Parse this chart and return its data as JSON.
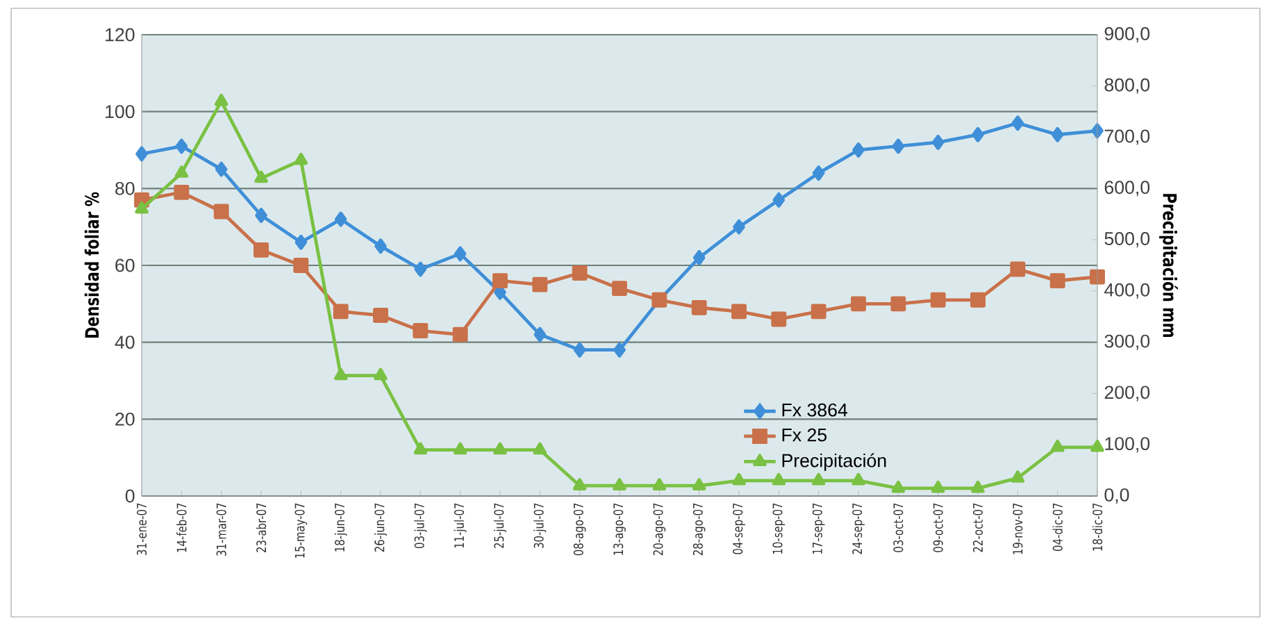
{
  "chart_data": {
    "type": "line",
    "ylabel": "Densidad foliar %",
    "y2label": "Precipitación mm",
    "categories": [
      "31-ene-07",
      "14-feb-07",
      "31-mar-07",
      "23-abr-07",
      "15-may-07",
      "18-jun-07",
      "26-jun-07",
      "03-jul-07",
      "11-jul-07",
      "25-jul-07",
      "30-jul-07",
      "08-ago-07",
      "13-ago-07",
      "20-ago-07",
      "28-ago-07",
      "04-sep-07",
      "10-sep-07",
      "17-sep-07",
      "24-sep-07",
      "03-oct-07",
      "09-oct-07",
      "22-oct-07",
      "19-nov-07",
      "04-dic-07",
      "18-dic-07"
    ],
    "series": [
      {
        "name": "Fx 3864",
        "color": "#3f8fd8",
        "marker": "diamond",
        "values": [
          89,
          91,
          85,
          73,
          66,
          72,
          65,
          59,
          63,
          53,
          42,
          38,
          38,
          51,
          62,
          70,
          77,
          84,
          90,
          91,
          92,
          94,
          97,
          94,
          95
        ]
      },
      {
        "name": "Fx 25",
        "color": "#c9714a",
        "marker": "square",
        "values": [
          77,
          79,
          74,
          64,
          60,
          48,
          47,
          43,
          42,
          56,
          55,
          58,
          54,
          51,
          49,
          48,
          46,
          48,
          50,
          50,
          51,
          51,
          59,
          56,
          57
        ]
      },
      {
        "name": "Precipitación",
        "color": "#7ac143",
        "marker": "triangle",
        "axis": "y2",
        "values": [
          560,
          630,
          770,
          620,
          655,
          235,
          235,
          90,
          90,
          90,
          90,
          20,
          20,
          20,
          20,
          30,
          30,
          30,
          30,
          15,
          15,
          15,
          35,
          95,
          95
        ]
      }
    ],
    "ylim": [
      0,
      120
    ],
    "yticks": [
      0,
      20,
      40,
      60,
      80,
      100,
      120
    ],
    "y2lim": [
      0,
      900
    ],
    "y2ticks": [
      {
        "value": 0,
        "label": "0,0"
      },
      {
        "value": 100,
        "label": "100,0"
      },
      {
        "value": 200,
        "label": "200,0"
      },
      {
        "value": 300,
        "label": "300,0"
      },
      {
        "value": 400,
        "label": "400,0"
      },
      {
        "value": 500,
        "label": "500,0"
      },
      {
        "value": 600,
        "label": "600,0"
      },
      {
        "value": 700,
        "label": "700,0"
      },
      {
        "value": 800,
        "label": "800,0"
      },
      {
        "value": 900,
        "label": "900,0"
      }
    ],
    "grid": "y",
    "legend": "bottom right",
    "line_style": "solid"
  }
}
